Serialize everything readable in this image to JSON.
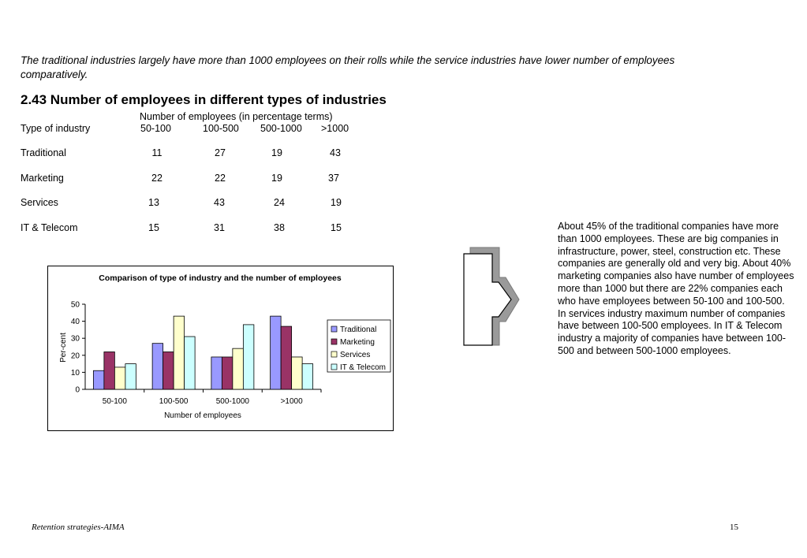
{
  "intro_text": "The traditional industries largely have more than 1000 employees on their rolls while the service industries have lower number of employees comparatively.",
  "section_title": "2.43 Number of employees in different types of industries",
  "table": {
    "caption": "Number of employees (in percentage terms)",
    "header_label": "Type of industry",
    "columns": [
      "50-100",
      "100-500",
      "500-1000",
      ">1000"
    ],
    "rows": [
      {
        "label": "Traditional",
        "values": [
          "11",
          "27",
          "19",
          "43"
        ]
      },
      {
        "label": "Marketing",
        "values": [
          "22",
          "22",
          "19",
          "37"
        ]
      },
      {
        "label": "Services",
        "values": [
          "13",
          "43",
          "24",
          "19"
        ]
      },
      {
        "label": "IT & Telecom",
        "values": [
          "15",
          "31",
          "38",
          "15"
        ]
      }
    ]
  },
  "chart_data": {
    "type": "bar",
    "title": "Comparison of type of industry and the number of employees",
    "xlabel": "Number of employees",
    "ylabel": "Per-cent",
    "categories": [
      "50-100",
      "100-500",
      "500-1000",
      ">1000"
    ],
    "ylim": [
      0,
      50
    ],
    "yticks": [
      0,
      10,
      20,
      30,
      40,
      50
    ],
    "grid": false,
    "legend_position": "right",
    "series": [
      {
        "name": "Traditional",
        "values": [
          11,
          27,
          19,
          43
        ],
        "color": "#9999ff"
      },
      {
        "name": "Marketing",
        "values": [
          22,
          22,
          19,
          37
        ],
        "color": "#993366"
      },
      {
        "name": "Services",
        "values": [
          13,
          43,
          24,
          19
        ],
        "color": "#ffffcc"
      },
      {
        "name": "IT & Telecom",
        "values": [
          15,
          31,
          38,
          15
        ],
        "color": "#ccffff"
      }
    ]
  },
  "description_text": "About 45% of the traditional companies have more than 1000 employees. These are big companies in infrastructure, power, steel, construction etc. These companies are generally old and very big. About 40% marketing companies also have number of employees more than 1000 but there are 22% companies each who have employees between 50-100 and 100-500. In services industry maximum number of companies have between 100-500 employees. In IT & Telecom industry a majority of companies have between 100-500 and between 500-1000 employees.",
  "footer": {
    "left": "Retention strategies-AIMA",
    "page_number": "15"
  }
}
